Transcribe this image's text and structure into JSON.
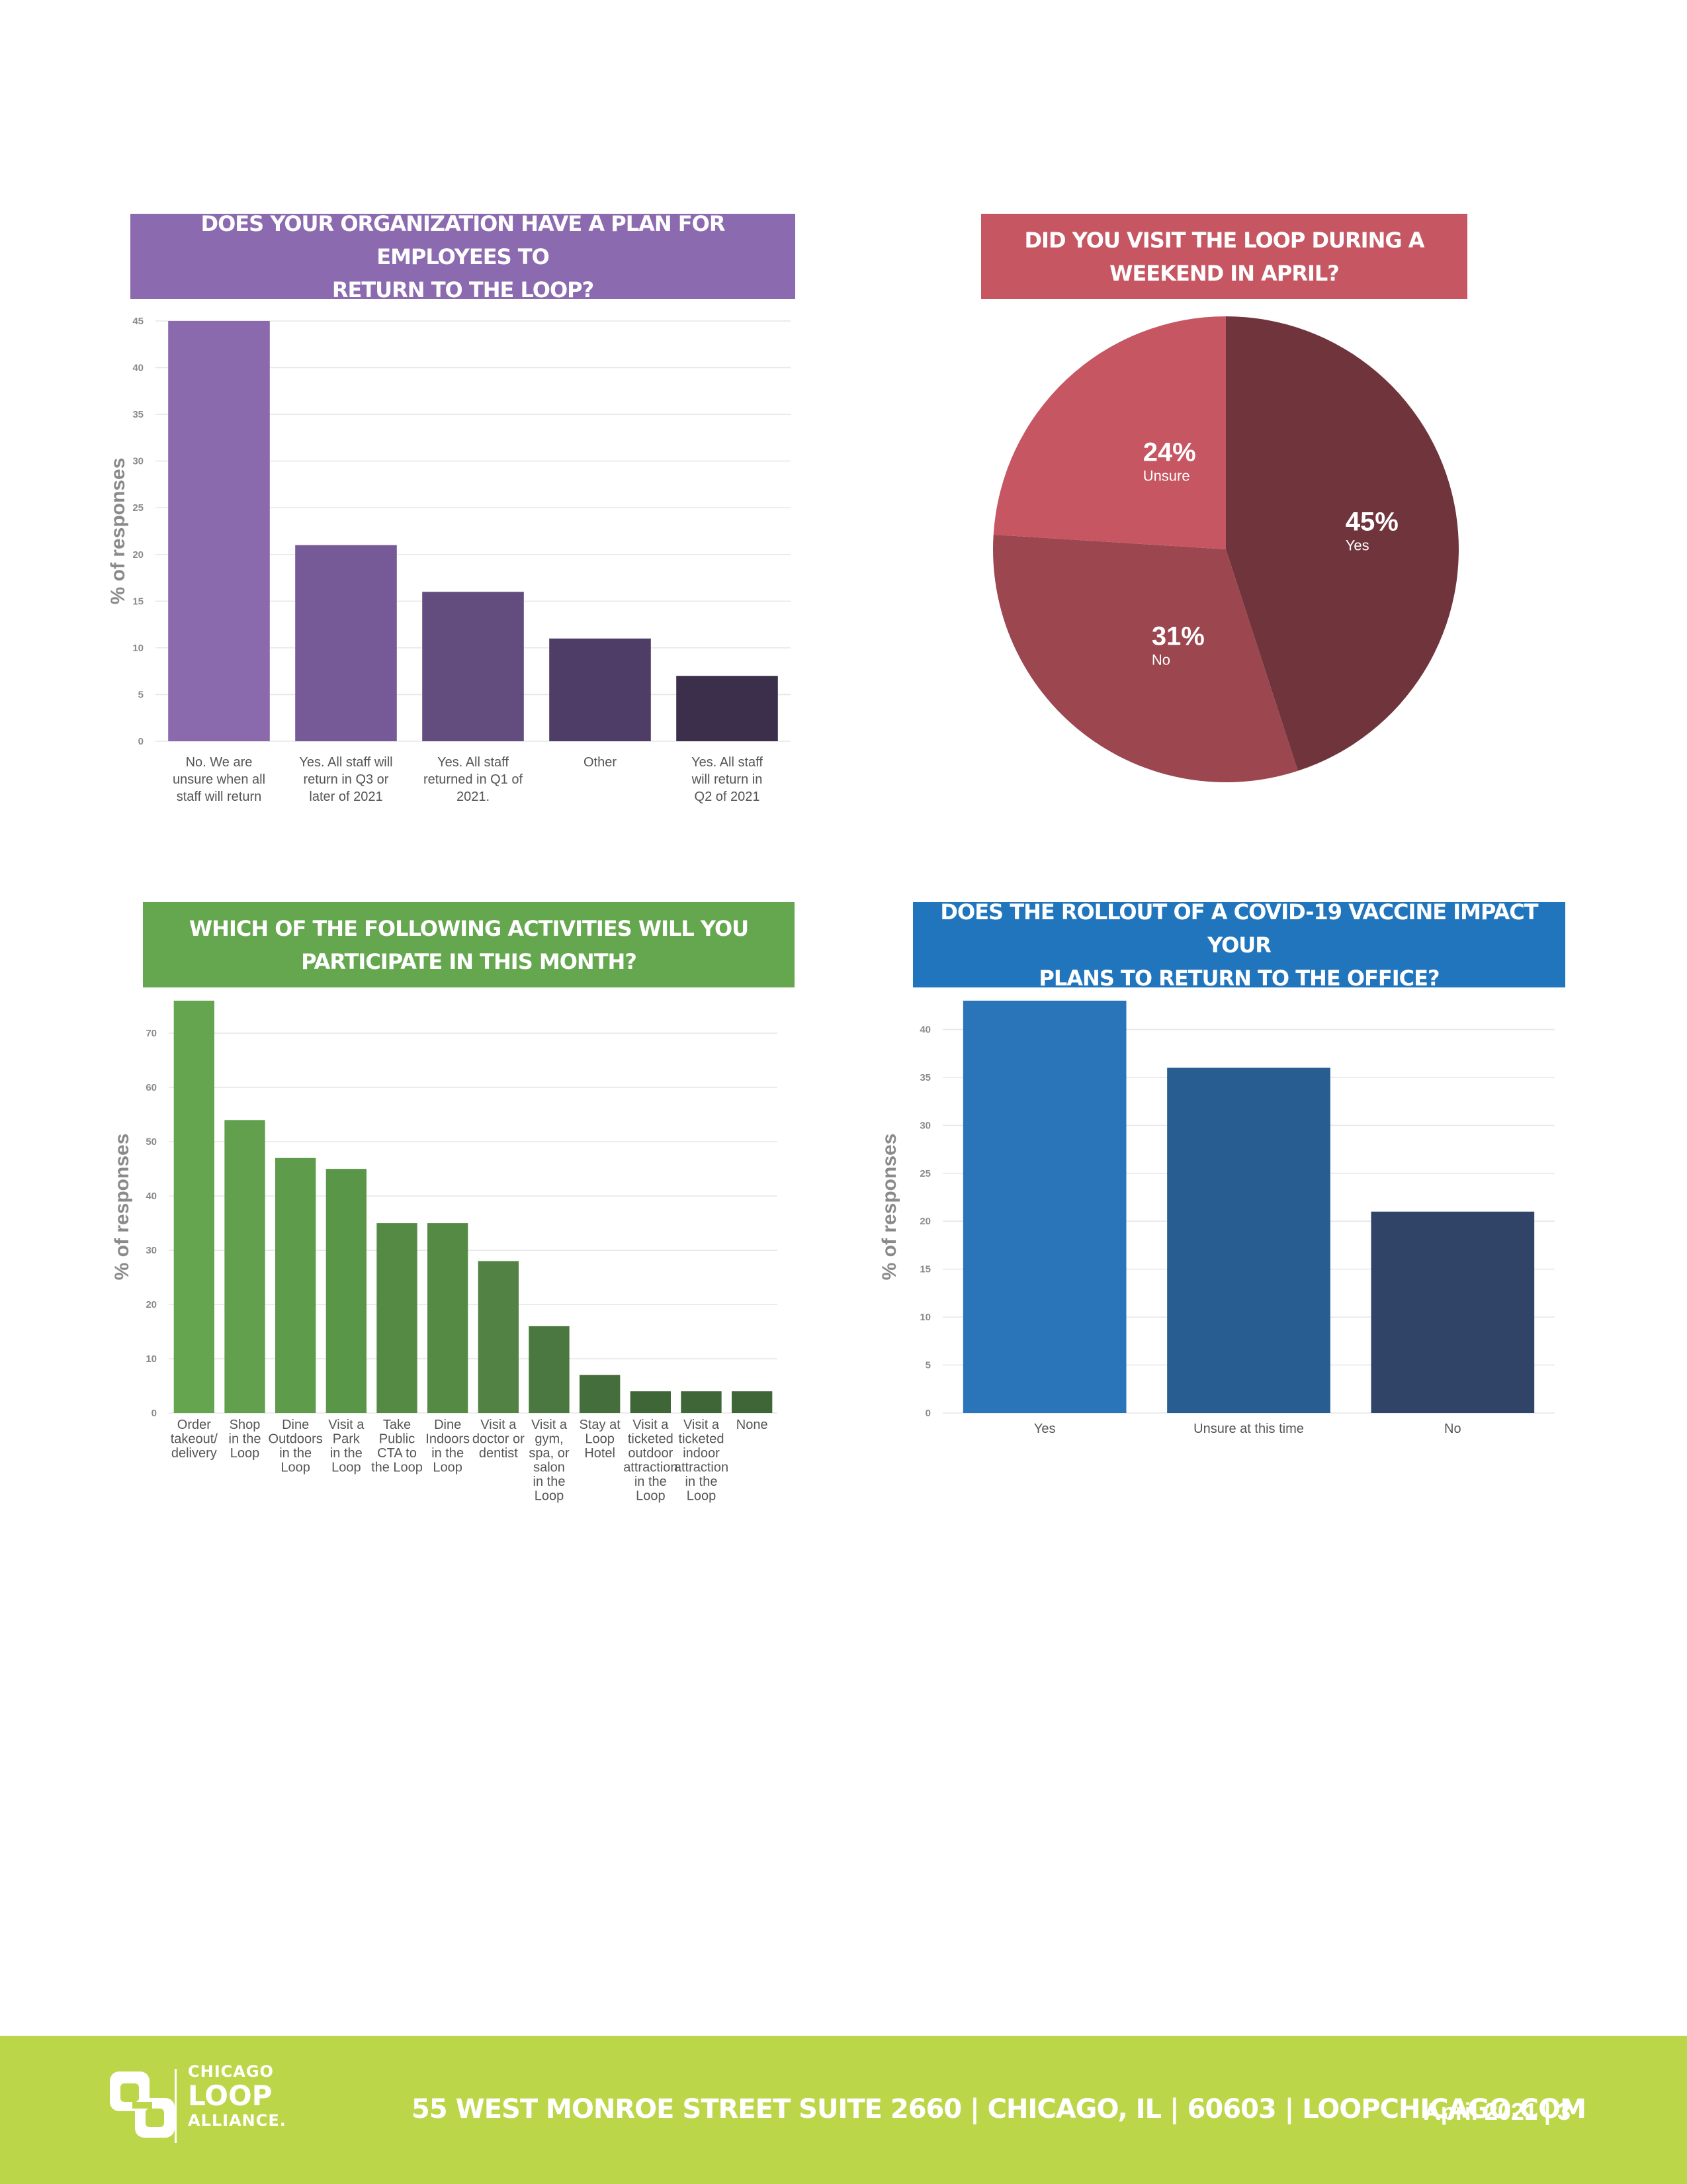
{
  "chart_data": [
    {
      "type": "bar",
      "title": "DOES YOUR ORGANIZATION HAVE A PLAN FOR EMPLOYEES TO\nRETURN TO THE LOOP?",
      "header_color": "#8c6ab0",
      "ylabel": "% of responses",
      "ylim": [
        0,
        45
      ],
      "yticks": [
        0,
        5,
        10,
        15,
        20,
        25,
        30,
        35,
        40,
        45
      ],
      "categories": [
        "No. We are\nunsure when all\nstaff will return",
        "Yes. All staff will\nreturn in Q3 or\nlater of 2021",
        "Yes. All staff\nreturned in Q1 of\n2021.",
        "Other",
        "Yes. All staff\nwill return in\nQ2 of 2021"
      ],
      "values": [
        45,
        21,
        16,
        11,
        7
      ],
      "colors": [
        "#8a6aad",
        "#765a98",
        "#634d7f",
        "#4e3d66",
        "#3b2f4c"
      ],
      "grid": true
    },
    {
      "type": "pie",
      "title": "DID YOU VISIT THE LOOP DURING A\nWEEKEND IN APRIL?",
      "header_color": "#c65662",
      "slices": [
        {
          "label": "Yes",
          "value": 45,
          "text": "45%",
          "color": "#70353c"
        },
        {
          "label": "No",
          "value": 31,
          "text": "31%",
          "color": "#9c464f"
        },
        {
          "label": "Unsure",
          "value": 24,
          "text": "24%",
          "color": "#c65662"
        }
      ]
    },
    {
      "type": "bar",
      "title": "WHICH OF THE FOLLOWING ACTIVITIES WILL YOU\nPARTICIPATE IN THIS MONTH?",
      "header_color": "#65a74e",
      "ylabel": "% of responses",
      "ylim": [
        0,
        76
      ],
      "yticks": [
        0,
        10,
        20,
        30,
        40,
        50,
        60,
        70
      ],
      "categories": [
        "Order\ntakeout/\ndelivery",
        "Shop\nin the\nLoop",
        "Dine\nOutdoors\nin the\nLoop",
        "Visit a\nPark\nin the\nLoop",
        "Take\nPublic\nCTA to\nthe Loop",
        "Dine\nIndoors\nin the\nLoop",
        "Visit a\ndoctor or\ndentist",
        "Visit a\ngym,\nspa, or\nsalon\nin the\nLoop",
        "Stay at\nLoop\nHotel",
        "Visit a\nticketed\noutdoor\nattraction\nin the\nLoop",
        "Visit a\nticketed\nindoor\nattraction\nin the\nLoop",
        "None"
      ],
      "values": [
        76,
        54,
        47,
        45,
        35,
        35,
        28,
        16,
        7,
        4,
        4,
        4
      ],
      "colors": [
        "#66a550",
        "#62a04d",
        "#5e9b4b",
        "#5a9648",
        "#558a45",
        "#558a45",
        "#528344",
        "#4a7840",
        "#446e3b",
        "#3f6637",
        "#3f6637",
        "#3f6637"
      ],
      "grid": true
    },
    {
      "type": "bar",
      "title": "DOES THE ROLLOUT OF A COVID-19 VACCINE IMPACT YOUR\nPLANS TO RETURN TO THE OFFICE?",
      "header_color": "#2175bd",
      "ylabel": "% of responses",
      "ylim": [
        0,
        43
      ],
      "yticks": [
        0,
        5,
        10,
        15,
        20,
        25,
        30,
        35,
        40
      ],
      "categories": [
        "Yes",
        "Unsure at this time",
        "No"
      ],
      "values": [
        43,
        36,
        21
      ],
      "colors": [
        "#2a74b9",
        "#285d91",
        "#2f4466"
      ],
      "grid": true
    }
  ],
  "footer": {
    "logo_line1": "CHICAGO",
    "logo_line2": "LOOP",
    "logo_line3": "ALLIANCE.",
    "address": "55 WEST MONROE STREET SUITE 2660 | CHICAGO, IL | 60603 | LOOPCHICAGO.COM",
    "page_info": "April 2021 | 3",
    "background": "#bcd64a"
  }
}
